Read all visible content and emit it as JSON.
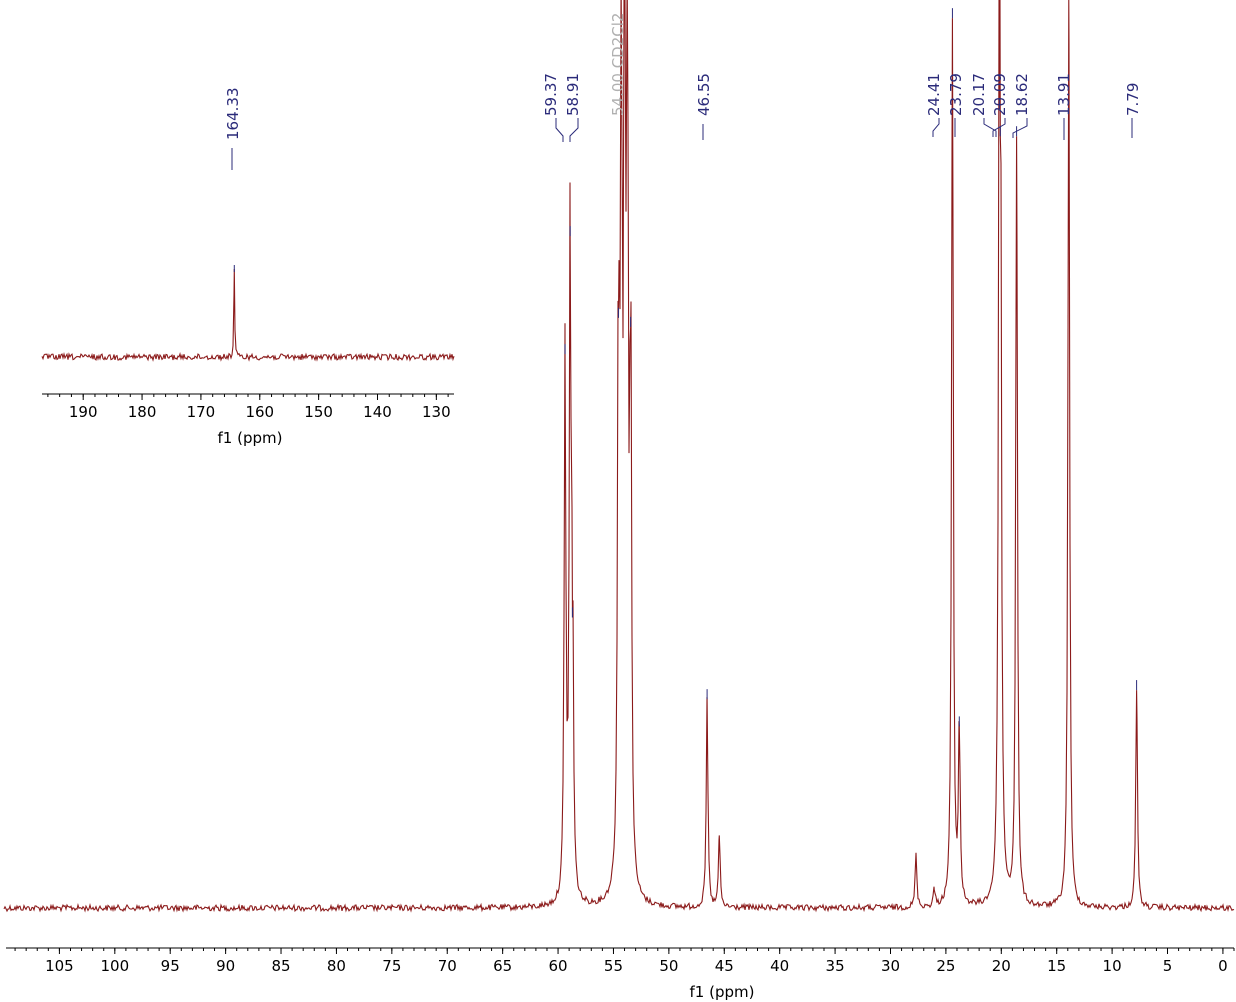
{
  "chart_data": [
    {
      "type": "line",
      "panel": "main",
      "xlabel": "f1 (ppm)",
      "ylabel": "",
      "x_reversed": true,
      "xlim": [
        110,
        -1
      ],
      "x_ticks": [
        105,
        100,
        95,
        90,
        85,
        80,
        75,
        70,
        65,
        60,
        55,
        50,
        45,
        40,
        35,
        30,
        25,
        20,
        15,
        10,
        5,
        0
      ],
      "grid": false,
      "legend": "none",
      "colors": {
        "spectrum": "#8b1a1a",
        "peak_labels": "#2b2b7a",
        "solvent_label": "#b0b0b0"
      },
      "peak_labels": [
        "59.37",
        "58.91",
        "46.55",
        "24.41",
        "23.79",
        "20.17",
        "20.09",
        "18.62",
        "13.91",
        "7.79"
      ],
      "solvent_label": "54.00 CD2Cl2",
      "peaks": [
        {
          "ppm": 59.37,
          "height": 0.61
        },
        {
          "ppm": 58.91,
          "height": 0.74
        },
        {
          "ppm": 58.7,
          "height": 0.32
        },
        {
          "ppm": 54.55,
          "height": 0.65
        },
        {
          "ppm": 54.3,
          "height": 1.0
        },
        {
          "ppm": 54.0,
          "height": 1.0
        },
        {
          "ppm": 53.75,
          "height": 1.0
        },
        {
          "ppm": 53.45,
          "height": 0.64
        },
        {
          "ppm": 46.55,
          "height": 0.23
        },
        {
          "ppm": 45.45,
          "height": 0.08
        },
        {
          "ppm": 27.7,
          "height": 0.06
        },
        {
          "ppm": 26.05,
          "height": 0.02
        },
        {
          "ppm": 24.41,
          "height": 0.98
        },
        {
          "ppm": 23.79,
          "height": 0.2
        },
        {
          "ppm": 20.17,
          "height": 0.88
        },
        {
          "ppm": 20.09,
          "height": 0.85
        },
        {
          "ppm": 18.62,
          "height": 0.85
        },
        {
          "ppm": 13.91,
          "height": 1.0
        },
        {
          "ppm": 7.79,
          "height": 0.24
        }
      ]
    },
    {
      "type": "line",
      "panel": "inset",
      "xlabel": "f1 (ppm)",
      "ylabel": "",
      "x_reversed": true,
      "xlim": [
        197,
        127
      ],
      "x_ticks": [
        190,
        180,
        170,
        160,
        150,
        140,
        130
      ],
      "grid": false,
      "legend": "none",
      "peak_labels": [
        "164.33"
      ],
      "peaks": [
        {
          "ppm": 164.33,
          "height": 1.0
        }
      ]
    }
  ]
}
